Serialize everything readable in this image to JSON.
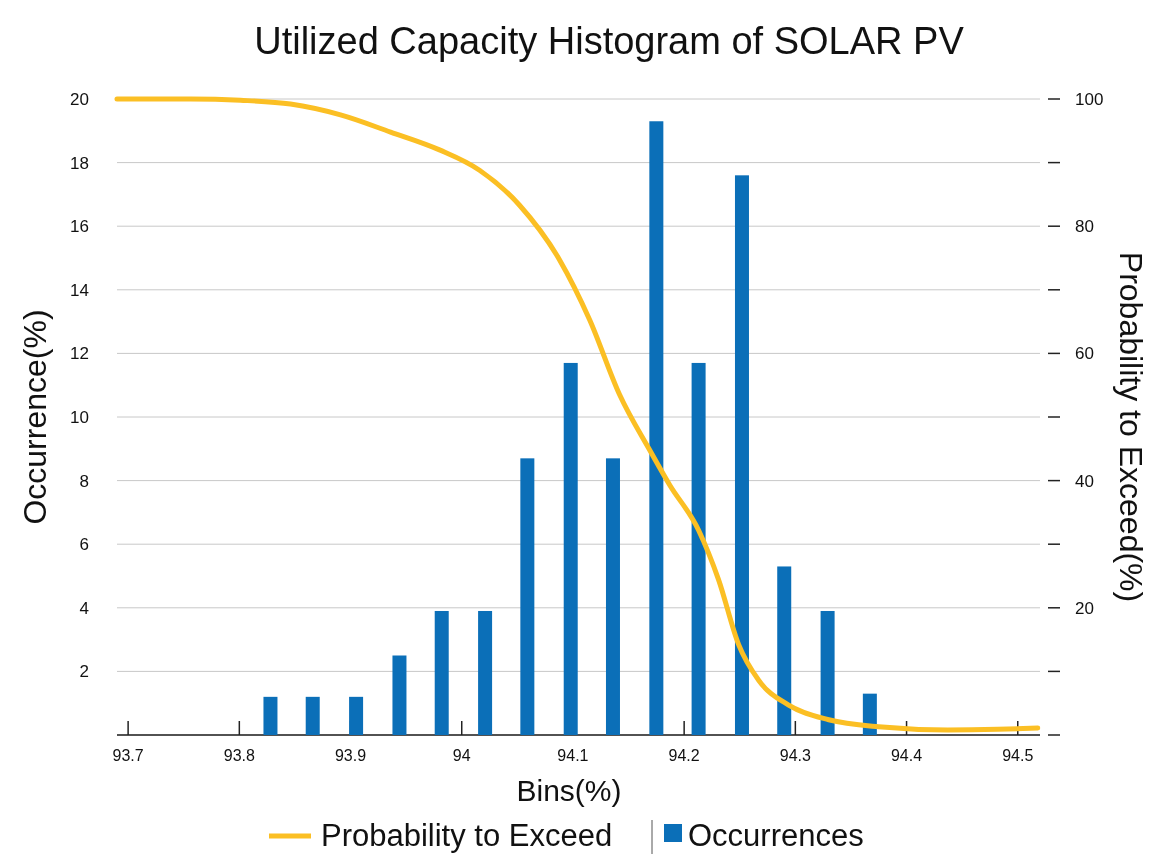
{
  "chart_data": {
    "type": "bar",
    "title": "Utilized Capacity Histogram of SOLAR PV",
    "xlabel": "Bins(%)",
    "ylabel": "Occurrence(%)",
    "y2label": "Probability to Exceed(%)",
    "xlim": [
      93.69,
      94.52
    ],
    "xticks": [
      93.7,
      93.8,
      93.9,
      94,
      94.1,
      94.2,
      94.3,
      94.4,
      94.5
    ],
    "ylim": [
      0,
      20
    ],
    "yticks": [
      {
        "value": 0,
        "label": null
      },
      2,
      4,
      6,
      8,
      10,
      12,
      14,
      16,
      18,
      20
    ],
    "y2lim": [
      0,
      100
    ],
    "y2ticks": [
      {
        "value": 0,
        "label": null
      },
      {
        "value": 10,
        "label": null
      },
      20,
      {
        "value": 30,
        "label": null
      },
      40,
      {
        "value": 50,
        "label": null
      },
      60,
      {
        "value": 70,
        "label": null
      },
      80,
      {
        "value": 90,
        "label": null
      },
      100
    ],
    "grid": "y",
    "legend": "bottom",
    "series": [
      {
        "name": "Probability to Exceed",
        "type": "line",
        "axis": "y2",
        "color": "#fbbf24",
        "x": [
          93.69,
          93.756,
          93.801,
          93.846,
          93.891,
          93.936,
          93.98,
          94.016,
          94.052,
          94.088,
          94.115,
          94.142,
          94.169,
          94.187,
          94.213,
          94.231,
          94.249,
          94.267,
          94.294,
          94.33,
          94.375,
          94.437,
          94.482,
          94.518
        ],
        "values": [
          100,
          100,
          99.8,
          99.2,
          97.5,
          94.8,
          92,
          88.8,
          83.3,
          74.7,
          65.3,
          53.5,
          44.8,
          39.3,
          32.2,
          24.4,
          14.2,
          8.6,
          4.7,
          2.4,
          1.3,
          0.8,
          0.9,
          1.1
        ]
      },
      {
        "name": "Occurrences",
        "color": "#0b6fb8",
        "x": [
          93.828,
          93.866,
          93.905,
          93.944,
          93.982,
          94.021,
          94.059,
          94.098,
          94.136,
          94.175,
          94.213,
          94.252,
          94.29,
          94.329,
          94.367
        ],
        "values": [
          1.2,
          1.2,
          1.2,
          2.5,
          3.9,
          3.9,
          8.7,
          11.7,
          8.7,
          19.3,
          11.7,
          17.6,
          5.3,
          3.9,
          1.3
        ]
      }
    ]
  }
}
